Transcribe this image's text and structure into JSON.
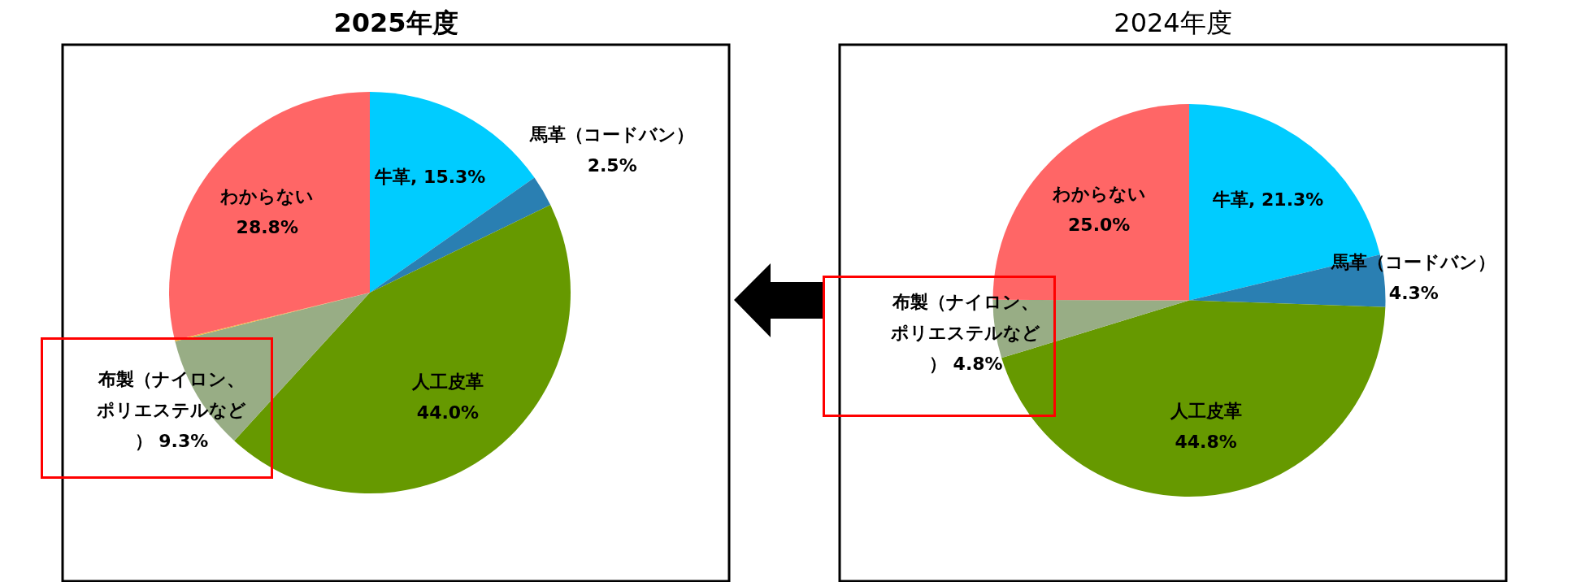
{
  "chart_data": [
    {
      "type": "pie",
      "title": "2025年度",
      "categories": [
        "牛革",
        "馬革（コードバン）",
        "人工皮革",
        "布製（ナイロン、ポリエステルなど）",
        null,
        "わからない"
      ],
      "values": [
        15.3,
        2.5,
        44.0,
        9.3,
        0.1,
        28.8
      ],
      "colors": [
        "#00ccff",
        "#2a7fb2",
        "#669900",
        "#98ad85",
        "#f5b335",
        "#ff6666"
      ],
      "value_labels": [
        "15.3%",
        "2.5%",
        "44.0%",
        "9.3%",
        null,
        "28.8%"
      ]
    },
    {
      "type": "pie",
      "title": "2024年度",
      "categories": [
        "牛革",
        "馬革（コードバン）",
        "人工皮革",
        "布製（ナイロン、ポリエステルなど）",
        "わからない"
      ],
      "values": [
        21.3,
        4.3,
        44.8,
        4.8,
        25.0
      ],
      "colors": [
        "#00ccff",
        "#2a7fb2",
        "#669900",
        "#98ad85",
        "#ff6666"
      ],
      "value_labels": [
        "21.3%",
        "4.3%",
        "44.8%",
        "4.8%",
        "25.0%"
      ]
    }
  ]
}
